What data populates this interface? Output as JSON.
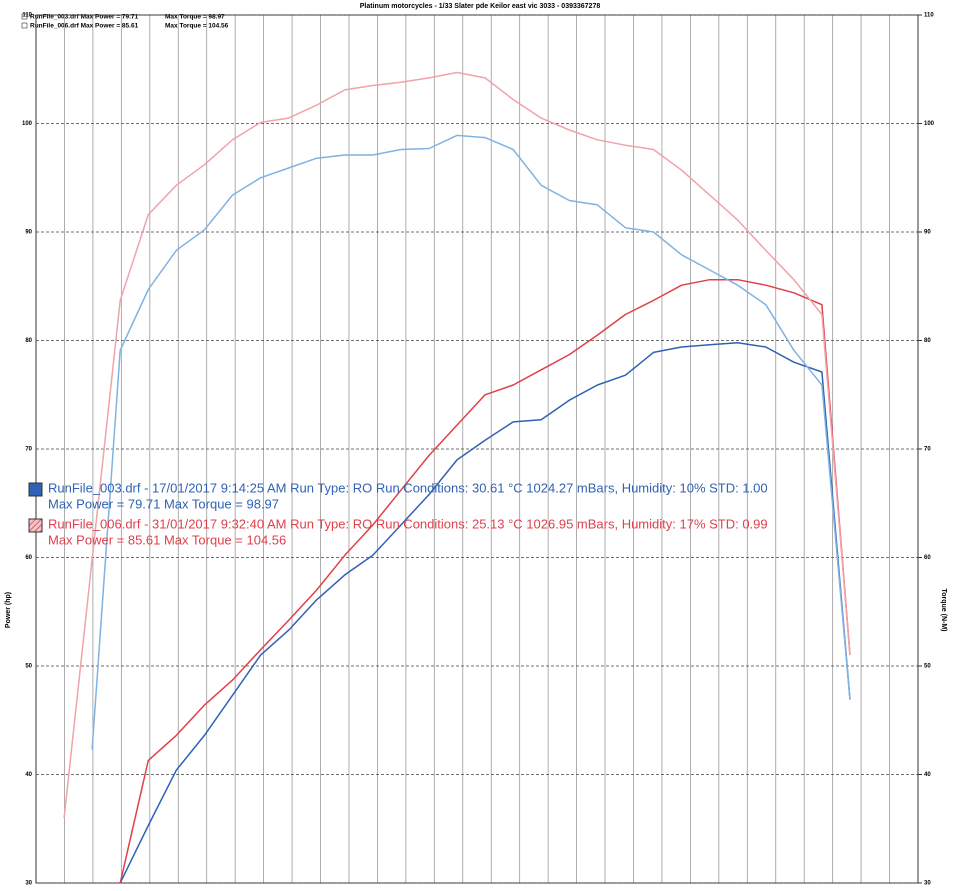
{
  "chart_data": {
    "type": "line",
    "title": "Platinum motorcycles - 1/33 Slater pde Keilor east vic 3033 - 0393367278",
    "y_label": "Power (hp)",
    "y2_label": "Torque (N-M)",
    "legend": [
      {
        "power": "RunFile_003.drf Max Power = 79.71",
        "torque": "Max Torque = 98.97"
      },
      {
        "power": "RunFile_006.drf Max Power = 85.61",
        "torque": "Max Torque = 104.56"
      }
    ],
    "annotations": [
      {
        "line1": "RunFile_003.drf - 17/01/2017 9:14:25 AM  Run Type: RO  Run Conditions: 30.61 °C  1024.27 mBars,  Humidity:  10%  STD: 1.00",
        "line2": "Max Power = 79.71  Max Torque = 98.97",
        "color": "#2f62b4"
      },
      {
        "line1": "RunFile_006.drf - 31/01/2017 9:32:40 AM  Run Type: RO  Run Conditions: 25.13 °C  1026.95 mBars,  Humidity:  17%  STD: 0.99",
        "line2": "Max Power = 85.61  Max Torque = 104.56",
        "color": "#e0404a"
      }
    ],
    "ylim": [
      30,
      110
    ],
    "yticks": [
      30,
      40,
      50,
      60,
      70,
      80,
      90,
      100,
      110
    ],
    "y2lim": [
      30,
      110
    ],
    "y2ticks": [
      30,
      40,
      50,
      60,
      70,
      80,
      90,
      100,
      110
    ],
    "grid": true,
    "series": [
      {
        "color": "#2f62b4",
        "values": [
          null,
          null,
          null,
          30,
          35.3,
          40.4,
          43.6,
          47.3,
          51.0,
          53.3,
          56.1,
          58.4,
          60.2,
          63.0,
          65.8,
          69.0,
          70.8,
          72.5,
          72.7,
          74.5,
          75.9,
          76.8,
          78.9,
          79.4,
          79.6,
          79.8,
          79.4,
          78.0,
          77.1,
          46.9
        ]
      },
      {
        "color": "#e0404a",
        "values": [
          null,
          null,
          null,
          30,
          41.3,
          43.6,
          46.4,
          48.7,
          51.5,
          54.2,
          57.0,
          60.2,
          63.0,
          66.2,
          69.4,
          72.2,
          75.0,
          75.9,
          77.3,
          78.7,
          80.5,
          82.4,
          83.7,
          85.1,
          85.6,
          85.6,
          85.1,
          84.4,
          83.3,
          51.0
        ]
      },
      {
        "color": "#80b2e2",
        "axis": "y2",
        "values": [
          null,
          null,
          42.3,
          79.1,
          84.7,
          88.3,
          90.2,
          93.4,
          95.0,
          95.9,
          96.8,
          97.1,
          97.1,
          97.6,
          97.7,
          98.9,
          98.7,
          97.6,
          94.3,
          92.9,
          92.5,
          90.4,
          90.0,
          87.9,
          86.5,
          85.1,
          83.3,
          79.1,
          75.9,
          46.9
        ]
      },
      {
        "color": "#f2a2aa",
        "axis": "y2",
        "values": [
          null,
          36.0,
          59.8,
          83.7,
          91.6,
          94.3,
          96.2,
          98.5,
          100.1,
          100.5,
          101.7,
          103.1,
          103.5,
          103.8,
          104.2,
          104.7,
          104.2,
          102.2,
          100.5,
          99.4,
          98.5,
          98.0,
          97.6,
          95.7,
          93.4,
          91.1,
          88.3,
          85.6,
          82.4,
          51.0
        ]
      }
    ]
  }
}
